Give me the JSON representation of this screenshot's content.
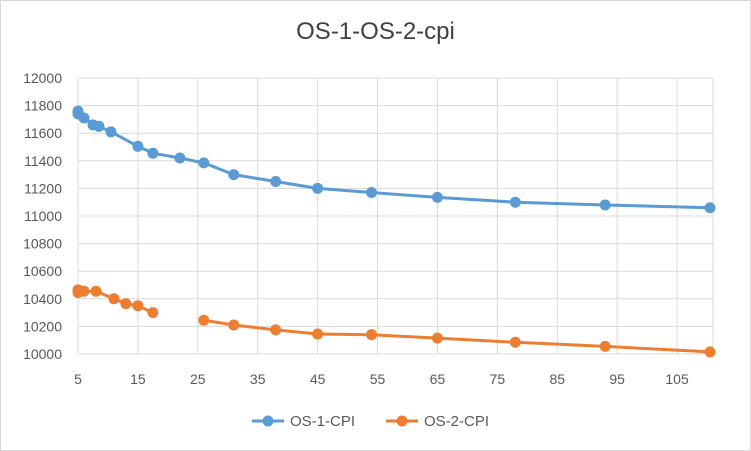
{
  "chart_data": {
    "type": "line",
    "title": "OS-1-OS-2-cpi",
    "xlabel": "",
    "ylabel": "",
    "xlim": [
      5,
      111
    ],
    "ylim": [
      10000,
      12000
    ],
    "xticks": [
      5,
      15,
      25,
      35,
      45,
      55,
      65,
      75,
      85,
      95,
      105
    ],
    "yticks": [
      10000,
      10200,
      10400,
      10600,
      10800,
      11000,
      11200,
      11400,
      11600,
      11800,
      12000
    ],
    "grid": true,
    "legend_position": "bottom",
    "series": [
      {
        "name": "OS-1-CPI",
        "color": "#5b9bd5",
        "points": [
          [
            5,
            11760
          ],
          [
            5,
            11740
          ],
          [
            6,
            11710
          ],
          [
            7.5,
            11660
          ],
          [
            8.5,
            11650
          ],
          [
            10.5,
            11610
          ],
          [
            15,
            11505
          ],
          [
            17.5,
            11455
          ],
          [
            22,
            11420
          ],
          [
            26,
            11385
          ],
          [
            31,
            11300
          ],
          [
            38,
            11250
          ],
          [
            45,
            11200
          ],
          [
            54,
            11170
          ],
          [
            65,
            11135
          ],
          [
            78,
            11100
          ],
          [
            93,
            11080
          ],
          [
            110.5,
            11060
          ]
        ]
      },
      {
        "name": "OS-2-CPI",
        "color": "#ed7d31",
        "points": [
          [
            5,
            10465
          ],
          [
            5,
            10445
          ],
          [
            6,
            10455
          ],
          [
            8,
            10455
          ],
          [
            11,
            10400
          ],
          [
            13,
            10365
          ],
          [
            15,
            10350
          ],
          [
            17.5,
            10300
          ],
          [
            null,
            null
          ],
          [
            26,
            10245
          ],
          [
            31,
            10210
          ],
          [
            38,
            10175
          ],
          [
            45,
            10145
          ],
          [
            54,
            10140
          ],
          [
            65,
            10115
          ],
          [
            78,
            10085
          ],
          [
            93,
            10055
          ],
          [
            110.5,
            10015
          ]
        ]
      }
    ]
  }
}
